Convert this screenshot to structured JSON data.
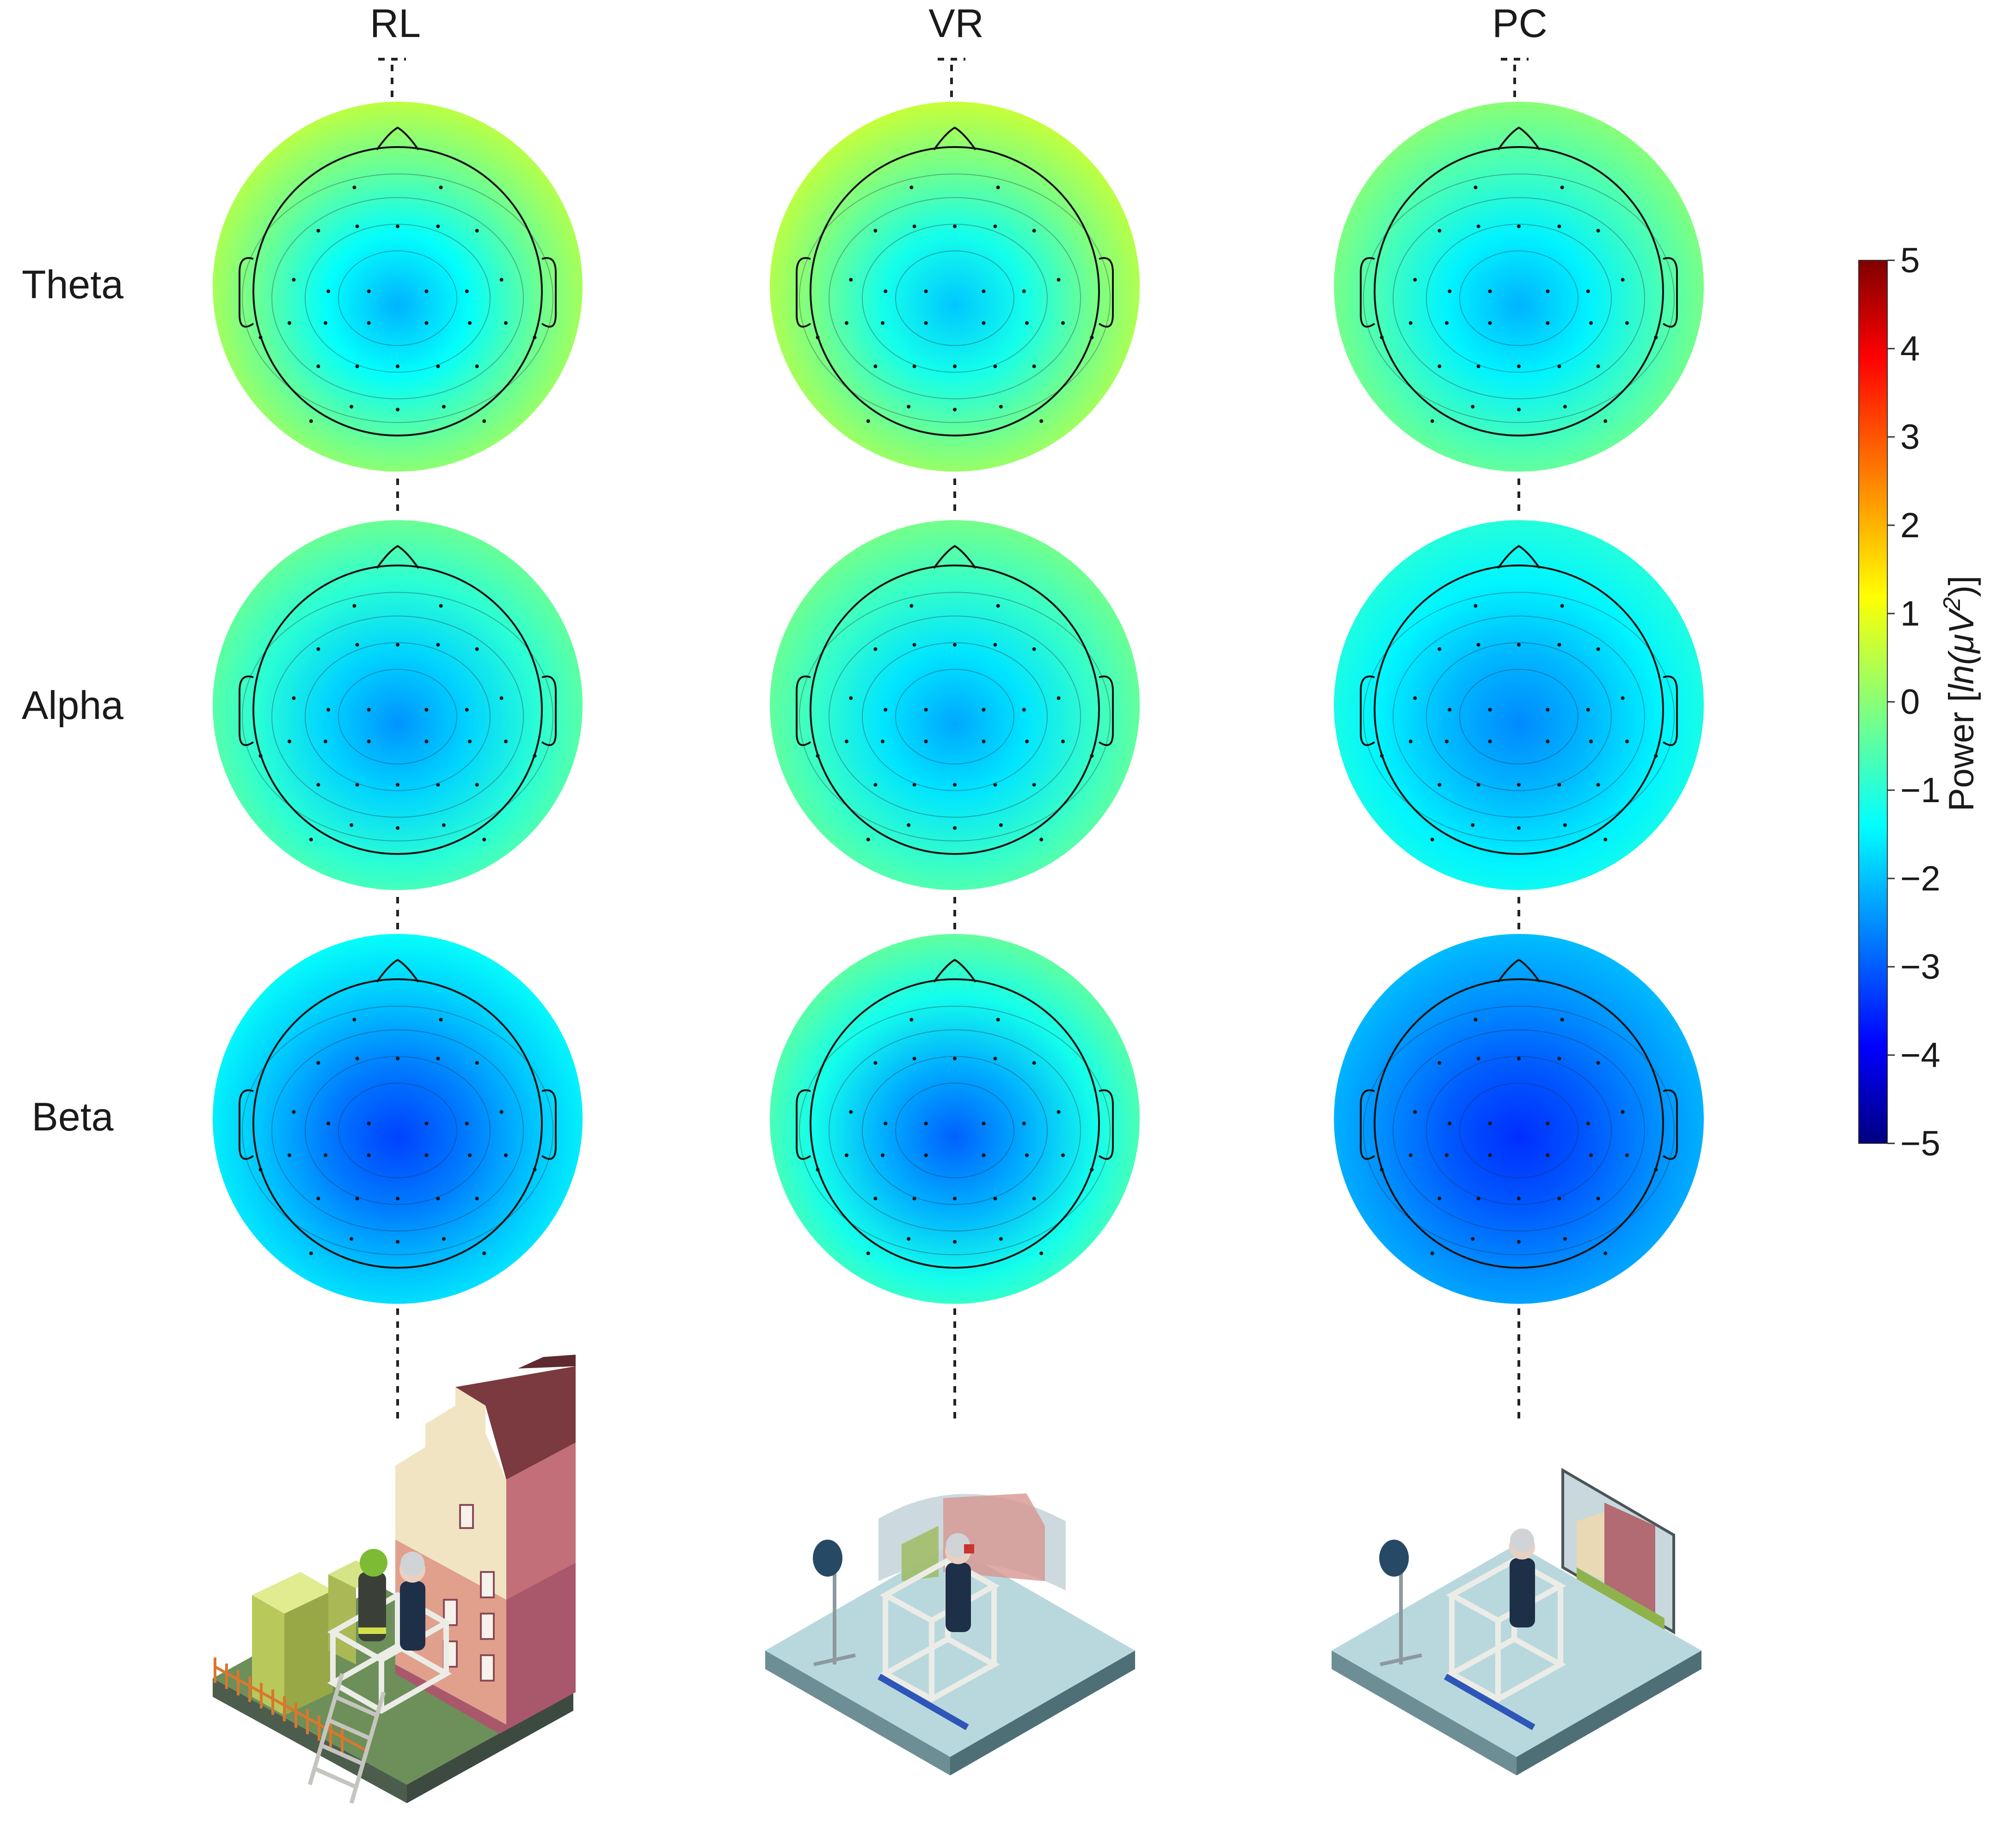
{
  "conditions": [
    {
      "label": "RL"
    },
    {
      "label": "VR"
    },
    {
      "label": "PC"
    }
  ],
  "bands": [
    {
      "label": "Theta"
    },
    {
      "label": "Alpha"
    },
    {
      "label": "Beta"
    }
  ],
  "colorbar": {
    "label_prefix": "Power [",
    "label_unit_italic": "ln(μV",
    "label_sup": "2",
    "label_suffix": ")]",
    "ticks": [
      "5",
      "4",
      "3",
      "2",
      "1",
      "0",
      "−1",
      "−2",
      "−3",
      "−4",
      "−5"
    ],
    "min": -5,
    "max": 5,
    "colormap": "jet"
  },
  "topomaps": {
    "RL": {
      "Theta": {
        "edge": 0.6,
        "center": -2.0
      },
      "Alpha": {
        "edge": -0.2,
        "center": -2.3
      },
      "Beta": {
        "edge": -1.2,
        "center": -3.1
      }
    },
    "VR": {
      "Theta": {
        "edge": 0.7,
        "center": -1.8
      },
      "Alpha": {
        "edge": -0.1,
        "center": -2.1
      },
      "Beta": {
        "edge": -0.3,
        "center": -2.8
      }
    },
    "PC": {
      "Theta": {
        "edge": 0.1,
        "center": -2.0
      },
      "Alpha": {
        "edge": -0.9,
        "center": -2.4
      },
      "Beta": {
        "edge": -1.9,
        "center": -3.3
      }
    }
  },
  "scenes": [
    {
      "condition": "RL",
      "kind": "real-building-with-lift-and-firefighter"
    },
    {
      "condition": "VR",
      "kind": "lift-with-vr-headset-and-curved-screen"
    },
    {
      "condition": "PC",
      "kind": "lift-with-flat-monitor"
    }
  ]
}
